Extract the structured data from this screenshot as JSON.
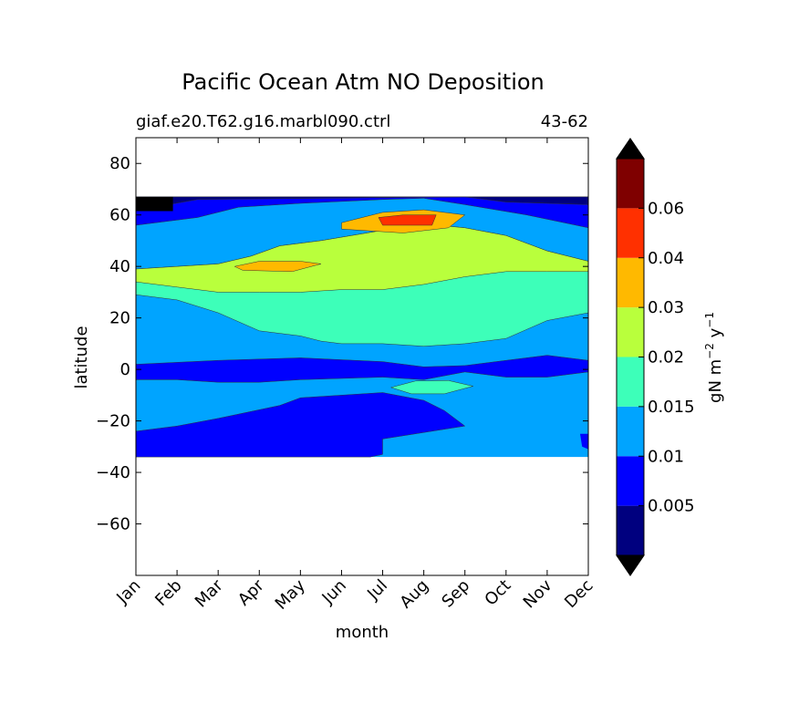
{
  "chart_data": {
    "type": "contourf",
    "title": "Pacific Ocean Atm NO Deposition",
    "subtitle_left": "giaf.e20.T62.g16.marbl090.ctrl",
    "subtitle_right": "43-62",
    "xlabel": "month",
    "ylabel": "latitude",
    "x_ticks": [
      "Jan",
      "Feb",
      "Mar",
      "Apr",
      "May",
      "Jun",
      "Jul",
      "Aug",
      "Sep",
      "Oct",
      "Nov",
      "Dec"
    ],
    "y_ticks": [
      80,
      60,
      40,
      20,
      0,
      -20,
      -40,
      -60
    ],
    "ylim": [
      -80,
      90
    ],
    "data_lat_range": [
      -34,
      67
    ],
    "colorbar": {
      "label_main": "gN m",
      "label_exp1": "−2",
      "label_mid": " y",
      "label_exp2": "−1",
      "levels": [
        0.005,
        0.01,
        0.015,
        0.02,
        0.03,
        0.04,
        0.06
      ],
      "tick_labels": [
        "0.005",
        "0.01",
        "0.015",
        "0.02",
        "0.03",
        "0.04",
        "0.06"
      ],
      "colors": [
        "#00007f",
        "#0000ff",
        "#00a4ff",
        "#3dffb9",
        "#b9ff3c",
        "#ffb900",
        "#ff3000",
        "#7f0000"
      ],
      "extend": "both",
      "under_color": "#000000",
      "over_color": "#000000"
    },
    "bands": {
      "lat_min": -34,
      "lat_max": 67,
      "boundaries": [
        {
          "level": 0.005,
          "upper": [
            [
              0,
              64
            ],
            [
              0.8,
              64
            ],
            [
              1.5,
              66
            ],
            [
              8,
              67
            ],
            [
              9,
              65
            ],
            [
              11,
              64
            ],
            [
              11,
              62
            ]
          ],
          "lower": []
        },
        {
          "level": 0.01,
          "upper": [
            [
              0,
              56
            ],
            [
              1.5,
              59
            ],
            [
              2.5,
              63
            ],
            [
              4,
              64.5
            ],
            [
              6,
              66
            ],
            [
              7,
              66.5
            ],
            [
              8,
              64
            ],
            [
              9.5,
              60
            ],
            [
              11,
              55
            ]
          ],
          "lower": [
            [
              0,
              2
            ],
            [
              2,
              3.5
            ],
            [
              4,
              4.5
            ],
            [
              6,
              3
            ],
            [
              7,
              1
            ],
            [
              8,
              1.5
            ],
            [
              9,
              3.5
            ],
            [
              10,
              5.5
            ],
            [
              11,
              3.5
            ]
          ],
          "lower_south": [
            [
              0,
              -24
            ],
            [
              1,
              -22
            ],
            [
              2,
              -19
            ],
            [
              3.5,
              -14
            ],
            [
              4,
              -11
            ],
            [
              6,
              -9
            ],
            [
              7,
              -12
            ],
            [
              7.5,
              -16
            ],
            [
              8,
              -22
            ],
            [
              6,
              -27
            ],
            [
              5.5,
              -31
            ],
            [
              11,
              -34
            ]
          ]
        },
        {
          "level": 0.015,
          "upper": [
            [
              0,
              39
            ],
            [
              1,
              40
            ],
            [
              2,
              41
            ],
            [
              2.8,
              44
            ],
            [
              3.5,
              48
            ],
            [
              4.5,
              50
            ],
            [
              6,
              54
            ],
            [
              7,
              56.5
            ],
            [
              8,
              55
            ],
            [
              9,
              52
            ],
            [
              10,
              46
            ],
            [
              11,
              42
            ]
          ],
          "lower": [
            [
              0,
              29
            ],
            [
              1,
              27
            ],
            [
              2,
              22
            ],
            [
              3,
              15
            ],
            [
              4,
              13
            ],
            [
              4.5,
              11
            ],
            [
              5,
              10
            ],
            [
              6,
              10
            ],
            [
              7,
              9
            ],
            [
              8,
              10
            ],
            [
              9,
              12
            ],
            [
              10,
              19
            ],
            [
              11,
              22
            ]
          ]
        },
        {
          "level": 0.02,
          "upper": [
            [
              0,
              36
            ],
            [
              1,
              32
            ],
            [
              2,
              30
            ],
            [
              3,
              30
            ],
            [
              4,
              30
            ],
            [
              5,
              31
            ],
            [
              6,
              31
            ],
            [
              7,
              33
            ],
            [
              8,
              36
            ],
            [
              9,
              38
            ],
            [
              10,
              38
            ],
            [
              11,
              37
            ]
          ],
          "lower": [
            [
              0,
              34
            ],
            [
              1,
              27
            ],
            [
              2,
              25
            ],
            [
              3,
              22
            ],
            [
              4,
              20
            ],
            [
              5,
              19
            ],
            [
              6,
              20
            ],
            [
              7,
              20
            ],
            [
              8,
              21
            ],
            [
              9,
              21
            ],
            [
              10,
              21
            ],
            [
              11,
              22
            ]
          ]
        },
        {
          "level": 0.03,
          "islands": [
            [
              [
                2.4,
                40
              ],
              [
                3,
                42
              ],
              [
                4,
                42
              ],
              [
                4.5,
                41
              ],
              [
                3.8,
                38
              ],
              [
                2.6,
                38.5
              ]
            ],
            [
              [
                5,
                57
              ],
              [
                6,
                61
              ],
              [
                7,
                62
              ],
              [
                8,
                60
              ],
              [
                7.6,
                55
              ],
              [
                6.5,
                53
              ],
              [
                5,
                54.5
              ]
            ]
          ]
        },
        {
          "level": 0.04,
          "islands": [
            [
              [
                5.9,
                59
              ],
              [
                6.5,
                60
              ],
              [
                7.3,
                60
              ],
              [
                7.2,
                56
              ],
              [
                6,
                56
              ]
            ]
          ]
        }
      ]
    }
  }
}
